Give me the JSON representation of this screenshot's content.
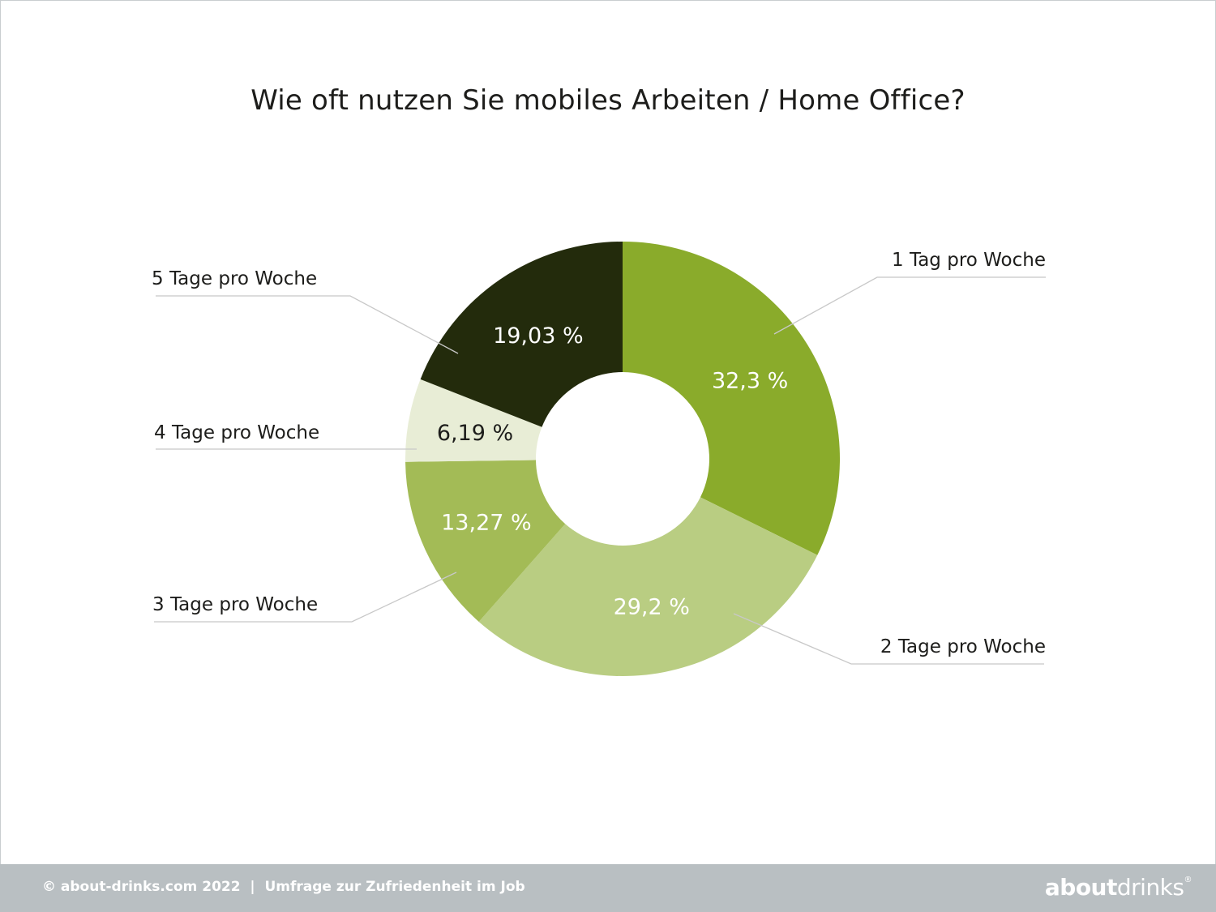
{
  "title": "Wie oft nutzen Sie mobiles Arbeiten / Home Office?",
  "chart_data": {
    "type": "pie",
    "variant": "donut",
    "title": "Wie oft nutzen Sie mobiles Arbeiten / Home Office?",
    "categories": [
      "1 Tag pro Woche",
      "2 Tage pro Woche",
      "3 Tage pro Woche",
      "4 Tage pro Woche",
      "5 Tage pro Woche"
    ],
    "values": [
      32.3,
      29.2,
      13.27,
      6.19,
      19.03
    ],
    "value_labels": [
      "32,3 %",
      "29,2 %",
      "13,27 %",
      "6,19 %",
      "19,03 %"
    ],
    "colors": [
      "#8aab2b",
      "#b9cd82",
      "#a3bb56",
      "#e8edd6",
      "#232b0c"
    ],
    "label_colors": [
      "#ffffff",
      "#ffffff",
      "#ffffff",
      "#1d1d1b",
      "#ffffff"
    ]
  },
  "footer": {
    "text": "© about-drinks.com 2022  |  Umfrage zur Zufriedenheit im Job",
    "logo_bold": "about",
    "logo_light": "drinks",
    "logo_mark": "®"
  }
}
